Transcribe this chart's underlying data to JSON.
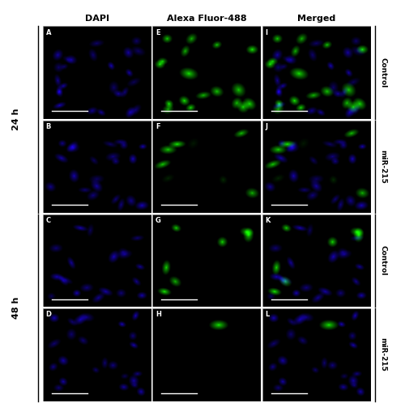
{
  "title_cols": [
    "DAPI",
    "Alexa Fluor-488",
    "Merged"
  ],
  "time_labels": [
    "24 h",
    "48 h"
  ],
  "panel_labels": [
    [
      "A",
      "E",
      "I"
    ],
    [
      "B",
      "F",
      "J"
    ],
    [
      "C",
      "G",
      "K"
    ],
    [
      "D",
      "H",
      "L"
    ]
  ],
  "row_condition_labels": [
    "Control",
    "miR-215",
    "Control",
    "miR-215"
  ],
  "outer_bg": "#ffffff",
  "header_fontsize": 8,
  "panel_label_fontsize": 6,
  "side_label_fontsize": 6.5,
  "time_label_fontsize": 8
}
